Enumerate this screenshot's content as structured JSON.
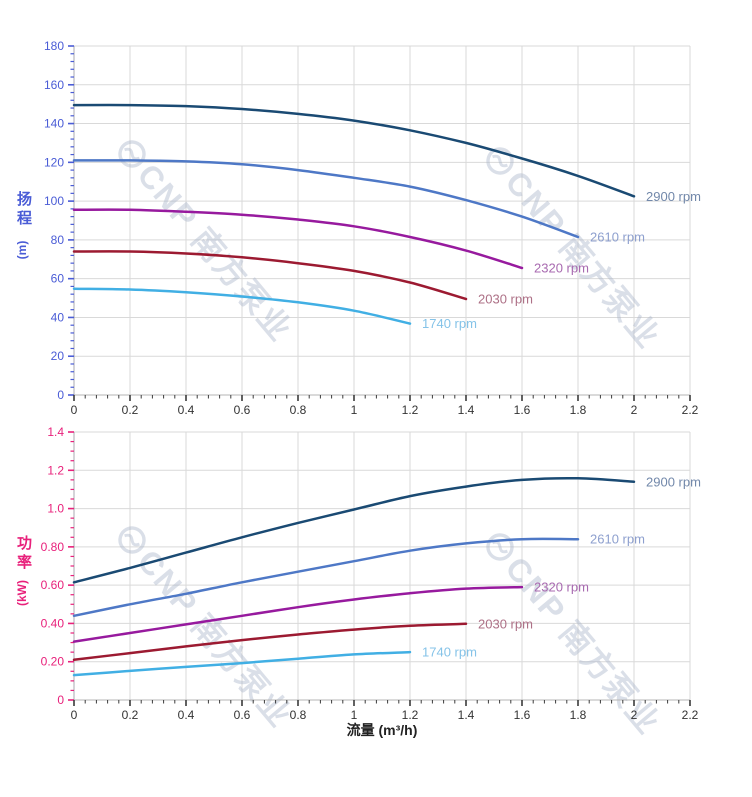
{
  "watermark": {
    "text": "CNP 南方泵业",
    "color": "#a9b4c9",
    "opacity": 0.42
  },
  "styles": {
    "grid_color": "#d9d9d9",
    "y_axis_line_color": "#a8a8b0",
    "x_axis_line_color": "#b5b5b5",
    "x_tick_color": "#3a3a3a",
    "x_tick_label_color": "#333333",
    "x_title_color": "#222222"
  },
  "chart_data": [
    {
      "type": "line",
      "name": "head-vs-flow",
      "title": "",
      "xlabel": "",
      "ylabel": "扬程",
      "ylabel_unit": "(m)",
      "axis_label_color": "#4a5cd6",
      "xlim": [
        0,
        2.2
      ],
      "ylim": [
        0,
        180
      ],
      "grid": true,
      "legend_position": "end-of-line",
      "xticks": {
        "values": [
          0,
          0.2,
          0.4,
          0.6,
          0.8,
          1,
          1.2,
          1.4,
          1.6,
          1.8,
          2,
          2.2
        ],
        "labels": [
          "0",
          "0.2",
          "0.4",
          "0.6",
          "0.8",
          "1",
          "1.2",
          "1.4",
          "1.6",
          "1.8",
          "2",
          "2.2"
        ],
        "divisions": 5
      },
      "yticks": {
        "values": [
          0,
          20,
          40,
          60,
          80,
          100,
          120,
          140,
          160,
          180
        ],
        "labels": [
          "0",
          "20",
          "40",
          "60",
          "80",
          "100",
          "120",
          "140",
          "160",
          "180"
        ],
        "divisions": 5
      },
      "series": [
        {
          "name": "2900 rpm",
          "color": "#1a4a73",
          "label_color": "#7288aa",
          "points": [
            [
              0,
              149.5
            ],
            [
              0.2,
              149.5
            ],
            [
              0.4,
              149
            ],
            [
              0.6,
              147.5
            ],
            [
              0.8,
              145
            ],
            [
              1.0,
              141.5
            ],
            [
              1.2,
              136.5
            ],
            [
              1.4,
              130
            ],
            [
              1.6,
              122
            ],
            [
              1.8,
              113
            ],
            [
              2.0,
              102.5
            ]
          ]
        },
        {
          "name": "2610 rpm",
          "color": "#4e78c6",
          "label_color": "#8d9fce",
          "points": [
            [
              0,
              121
            ],
            [
              0.2,
              121
            ],
            [
              0.4,
              120.5
            ],
            [
              0.6,
              119
            ],
            [
              0.8,
              116
            ],
            [
              1.0,
              112
            ],
            [
              1.2,
              107.5
            ],
            [
              1.4,
              100.5
            ],
            [
              1.6,
              92
            ],
            [
              1.8,
              81.5
            ]
          ]
        },
        {
          "name": "2320 rpm",
          "color": "#971a9e",
          "label_color": "#a86ab0",
          "points": [
            [
              0,
              95.5
            ],
            [
              0.2,
              95.5
            ],
            [
              0.4,
              94.5
            ],
            [
              0.6,
              93
            ],
            [
              0.8,
              90.5
            ],
            [
              1.0,
              87
            ],
            [
              1.2,
              81.5
            ],
            [
              1.4,
              74.5
            ],
            [
              1.6,
              65.5
            ]
          ]
        },
        {
          "name": "2030 rpm",
          "color": "#9c1a31",
          "label_color": "#ad7086",
          "points": [
            [
              0,
              74
            ],
            [
              0.2,
              74
            ],
            [
              0.4,
              73
            ],
            [
              0.6,
              71
            ],
            [
              0.8,
              68
            ],
            [
              1.0,
              64
            ],
            [
              1.2,
              58
            ],
            [
              1.4,
              49.5
            ]
          ]
        },
        {
          "name": "1740 rpm",
          "color": "#41afe4",
          "label_color": "#85c3e8",
          "points": [
            [
              0,
              54.8
            ],
            [
              0.2,
              54.4
            ],
            [
              0.4,
              53
            ],
            [
              0.6,
              50.8
            ],
            [
              0.8,
              47.8
            ],
            [
              1.0,
              43.5
            ],
            [
              1.2,
              36.8
            ]
          ]
        }
      ]
    },
    {
      "type": "line",
      "name": "power-vs-flow",
      "title": "",
      "xlabel": "流量 (m³/h)",
      "ylabel": "功率",
      "ylabel_unit": "(kW)",
      "axis_label_color": "#e8217b",
      "xlim": [
        0,
        2.2
      ],
      "ylim": [
        0,
        1.4
      ],
      "grid": true,
      "legend_position": "end-of-line",
      "xticks": {
        "values": [
          0,
          0.2,
          0.4,
          0.6,
          0.8,
          1,
          1.2,
          1.4,
          1.6,
          1.8,
          2,
          2.2
        ],
        "labels": [
          "0",
          "0.2",
          "0.4",
          "0.6",
          "0.8",
          "1",
          "1.2",
          "1.4",
          "1.6",
          "1.8",
          "2",
          "2.2"
        ],
        "divisions": 5
      },
      "yticks": {
        "values": [
          0,
          0.2,
          0.4,
          0.6,
          0.8,
          1.0,
          1.2,
          1.4
        ],
        "labels": [
          "0",
          "0.20",
          "0.40",
          "0.60",
          "0.80",
          "1.0",
          "1.2",
          "1.4"
        ],
        "divisions": 4
      },
      "series": [
        {
          "name": "2900 rpm",
          "color": "#1a4a73",
          "label_color": "#7288aa",
          "points": [
            [
              0,
              0.615
            ],
            [
              0.2,
              0.69
            ],
            [
              0.4,
              0.77
            ],
            [
              0.6,
              0.85
            ],
            [
              0.8,
              0.925
            ],
            [
              1.0,
              0.995
            ],
            [
              1.2,
              1.065
            ],
            [
              1.4,
              1.115
            ],
            [
              1.6,
              1.15
            ],
            [
              1.8,
              1.158
            ],
            [
              2.0,
              1.14
            ]
          ]
        },
        {
          "name": "2610 rpm",
          "color": "#4e78c6",
          "label_color": "#8d9fce",
          "points": [
            [
              0,
              0.44
            ],
            [
              0.2,
              0.5
            ],
            [
              0.4,
              0.555
            ],
            [
              0.6,
              0.615
            ],
            [
              0.8,
              0.67
            ],
            [
              1.0,
              0.725
            ],
            [
              1.2,
              0.78
            ],
            [
              1.4,
              0.818
            ],
            [
              1.6,
              0.84
            ],
            [
              1.8,
              0.84
            ]
          ]
        },
        {
          "name": "2320 rpm",
          "color": "#971a9e",
          "label_color": "#a86ab0",
          "points": [
            [
              0,
              0.305
            ],
            [
              0.2,
              0.35
            ],
            [
              0.4,
              0.395
            ],
            [
              0.6,
              0.44
            ],
            [
              0.8,
              0.485
            ],
            [
              1.0,
              0.525
            ],
            [
              1.2,
              0.558
            ],
            [
              1.4,
              0.582
            ],
            [
              1.6,
              0.59
            ]
          ]
        },
        {
          "name": "2030 rpm",
          "color": "#9c1a31",
          "label_color": "#ad7086",
          "points": [
            [
              0,
              0.21
            ],
            [
              0.2,
              0.245
            ],
            [
              0.4,
              0.28
            ],
            [
              0.6,
              0.313
            ],
            [
              0.8,
              0.342
            ],
            [
              1.0,
              0.368
            ],
            [
              1.2,
              0.388
            ],
            [
              1.4,
              0.398
            ]
          ]
        },
        {
          "name": "1740 rpm",
          "color": "#41afe4",
          "label_color": "#85c3e8",
          "points": [
            [
              0,
              0.13
            ],
            [
              0.2,
              0.152
            ],
            [
              0.4,
              0.173
            ],
            [
              0.6,
              0.193
            ],
            [
              0.8,
              0.216
            ],
            [
              1.0,
              0.238
            ],
            [
              1.2,
              0.25
            ]
          ]
        }
      ]
    }
  ]
}
